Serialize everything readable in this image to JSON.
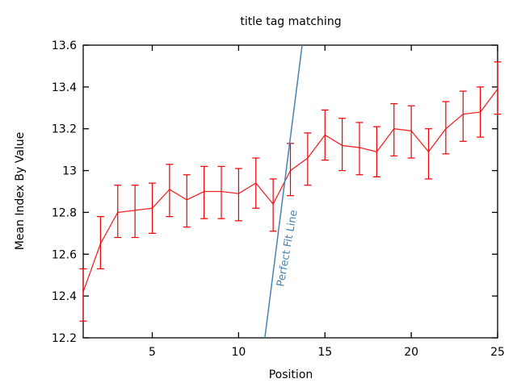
{
  "chart_data": {
    "type": "line",
    "title": "title tag matching",
    "xlabel": "Position",
    "ylabel": "Mean Index By Value",
    "xlim": [
      1,
      25
    ],
    "ylim": [
      12.2,
      13.6
    ],
    "xticks": {
      "values": [
        5,
        10,
        15,
        20,
        25
      ],
      "labels": [
        "5",
        "10",
        "15",
        "20",
        "25"
      ]
    },
    "yticks": {
      "values": [
        12.2,
        12.4,
        12.6,
        12.8,
        13.0,
        13.2,
        13.4,
        13.6
      ],
      "labels": [
        "12.2",
        "12.4",
        "12.6",
        "12.8",
        "13",
        "13.2",
        "13.4",
        "13.6"
      ]
    },
    "grid": false,
    "legend_position": "none",
    "background": "#ffffff",
    "axis_color": "#000000",
    "series": [
      {
        "name": "mean-index-by-value",
        "style": "yerrorlines",
        "color": "#ee0000",
        "x": [
          1,
          2,
          3,
          4,
          5,
          6,
          7,
          8,
          9,
          10,
          11,
          12,
          13,
          14,
          15,
          16,
          17,
          18,
          19,
          20,
          21,
          22,
          23,
          24,
          25
        ],
        "y": [
          12.42,
          12.65,
          12.8,
          12.81,
          12.82,
          12.91,
          12.86,
          12.9,
          12.9,
          12.89,
          12.94,
          12.84,
          13.0,
          13.06,
          13.17,
          13.12,
          13.11,
          13.09,
          13.2,
          13.19,
          13.09,
          13.2,
          13.27,
          13.28,
          13.39
        ],
        "y_low": [
          12.28,
          12.53,
          12.68,
          12.68,
          12.7,
          12.78,
          12.73,
          12.77,
          12.77,
          12.76,
          12.82,
          12.71,
          12.88,
          12.93,
          13.05,
          13.0,
          12.98,
          12.97,
          13.07,
          13.06,
          12.96,
          13.08,
          13.14,
          13.16,
          13.27
        ],
        "y_high": [
          12.53,
          12.78,
          12.93,
          12.93,
          12.94,
          13.03,
          12.98,
          13.02,
          13.02,
          13.01,
          13.06,
          12.96,
          13.13,
          13.18,
          13.29,
          13.25,
          13.23,
          13.21,
          13.32,
          13.31,
          13.2,
          13.33,
          13.38,
          13.4,
          13.52
        ]
      },
      {
        "name": "perfect-fit-line",
        "style": "line",
        "color": "#4682b4",
        "label": "Perfect Fit Line",
        "label_color": "#4682b4",
        "x": [
          11.52,
          13.68
        ],
        "y": [
          12.2,
          13.6
        ]
      }
    ]
  }
}
